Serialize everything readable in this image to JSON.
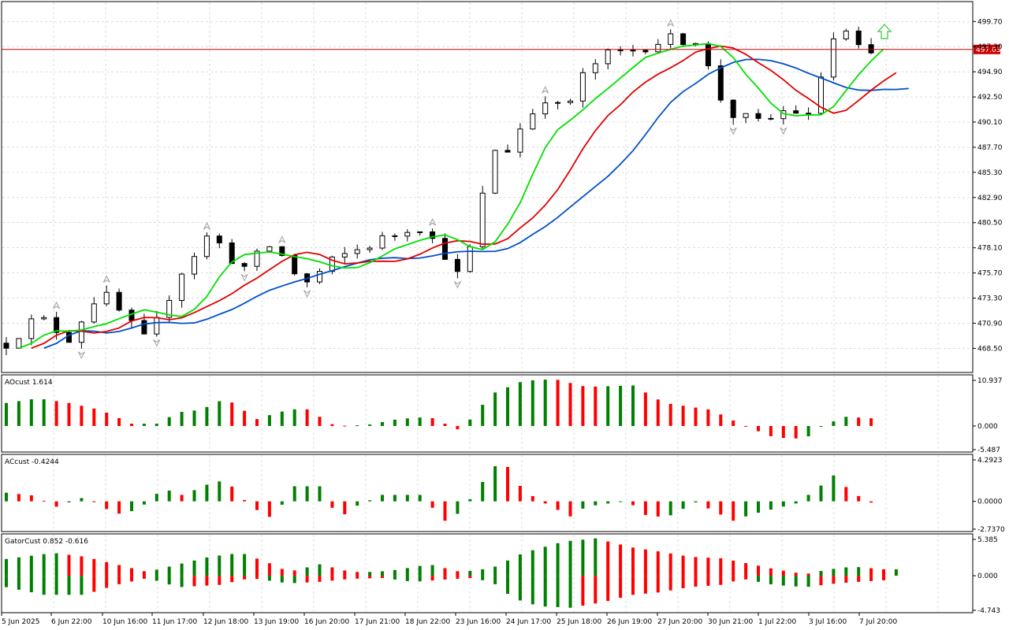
{
  "main": {
    "ylim": [
      466.2,
      501.6
    ],
    "y_ticks": [
      "499.70",
      "497.30",
      "494.90",
      "492.50",
      "490.10",
      "487.70",
      "485.30",
      "482.90",
      "480.50",
      "478.10",
      "475.70",
      "473.30",
      "470.90",
      "468.50"
    ],
    "current_price": "497.03",
    "current_price_value": 497.03,
    "colors": {
      "bull": "#ffffff",
      "bear": "#000000",
      "grid": "#c8c8c8",
      "price_line": "#cc0000",
      "lips": "#00e000",
      "teeth": "#e00000",
      "jaw": "#0050c8",
      "arrow": "#32c832",
      "fractal": "#a0a0a0"
    },
    "signal_icon": "up-arrow-icon"
  },
  "x_labels": [
    "5 Jun 2025",
    "6 Jun 22:00",
    "10 Jun 16:00",
    "11 Jun 17:00",
    "12 Jun 18:00",
    "13 Jun 19:00",
    "16 Jun 20:00",
    "17 Jun 21:00",
    "18 Jun 22:00",
    "23 Jun 16:00",
    "24 Jun 17:00",
    "25 Jun 18:00",
    "26 Jun 19:00",
    "27 Jun 20:00",
    "30 Jun 21:00",
    "1 Jul 22:00",
    "3 Jul 16:00",
    "7 Jul 20:00"
  ],
  "ao": {
    "title": "AOcust 1.614",
    "ticks": [
      "10.937",
      "0.000",
      "-5.487"
    ],
    "ylim": [
      -5.487,
      10.937
    ],
    "colors": {
      "up": "#008000",
      "down": "#ff0000"
    }
  },
  "ac": {
    "title": "ACcust -0.4244",
    "ticks": [
      "4.2923",
      "0.0000",
      "-2.7370"
    ],
    "ylim": [
      -2.737,
      4.2923
    ],
    "colors": {
      "up": "#008000",
      "down": "#ff0000"
    }
  },
  "gator": {
    "title": "GatorCust 0.852 -0.616",
    "ticks": [
      "5.385",
      "0.000",
      "-4.743"
    ],
    "ylim": [
      -4.743,
      5.385
    ],
    "colors": {
      "up": "#008000",
      "down": "#ff0000"
    }
  },
  "chart_data": {
    "type": "candlestick",
    "price_anchors": [
      [
        0,
        469
      ],
      [
        10,
        471.5
      ],
      [
        20,
        469.5
      ],
      [
        30,
        474
      ],
      [
        45,
        469
      ],
      [
        55,
        475.5
      ],
      [
        65,
        479.5
      ],
      [
        75,
        476
      ],
      [
        85,
        478.5
      ],
      [
        95,
        474.5
      ],
      [
        105,
        477
      ],
      [
        115,
        478.3
      ],
      [
        125,
        479.5
      ],
      [
        131,
        480.5
      ],
      [
        140,
        477.5
      ],
      [
        145,
        475
      ],
      [
        150,
        480
      ],
      [
        155,
        487.5
      ],
      [
        160,
        487.5
      ],
      [
        165,
        490
      ],
      [
        172,
        492.5
      ],
      [
        178,
        491
      ],
      [
        185,
        495
      ],
      [
        192,
        496.5
      ],
      [
        200,
        497
      ],
      [
        210,
        498
      ],
      [
        220,
        498
      ],
      [
        230,
        491
      ],
      [
        240,
        490
      ],
      [
        245,
        490.5
      ],
      [
        250,
        491.5
      ],
      [
        256,
        490.5
      ],
      [
        262,
        496.5
      ],
      [
        266,
        499.5
      ],
      [
        270,
        497.5
      ],
      [
        275,
        496.2
      ],
      [
        278,
        497
      ]
    ],
    "ao_anchors": [
      [
        0,
        5
      ],
      [
        10,
        6
      ],
      [
        20,
        5
      ],
      [
        30,
        3.5
      ],
      [
        40,
        0.5
      ],
      [
        48,
        0.5
      ],
      [
        55,
        3
      ],
      [
        62,
        3.5
      ],
      [
        70,
        6
      ],
      [
        80,
        1.5
      ],
      [
        87,
        3
      ],
      [
        95,
        4
      ],
      [
        105,
        0
      ],
      [
        115,
        0.2
      ],
      [
        125,
        1.5
      ],
      [
        135,
        2
      ],
      [
        145,
        -1
      ],
      [
        155,
        7
      ],
      [
        165,
        9.8
      ],
      [
        175,
        10.2
      ],
      [
        185,
        8.5
      ],
      [
        200,
        8.8
      ],
      [
        210,
        5
      ],
      [
        225,
        3.5
      ],
      [
        235,
        0.2
      ],
      [
        245,
        -2.5
      ],
      [
        255,
        -2.8
      ],
      [
        260,
        0
      ],
      [
        268,
        2
      ],
      [
        278,
        1.6
      ]
    ],
    "ac_anchors": [
      [
        0,
        0.8
      ],
      [
        10,
        0.5
      ],
      [
        15,
        -0.6
      ],
      [
        25,
        0.4
      ],
      [
        35,
        -1.2
      ],
      [
        42,
        -0.8
      ],
      [
        50,
        1.2
      ],
      [
        57,
        0.5
      ],
      [
        62,
        1.4
      ],
      [
        70,
        2
      ],
      [
        78,
        -0.5
      ],
      [
        85,
        -1.6
      ],
      [
        92,
        1.4
      ],
      [
        100,
        1.4
      ],
      [
        106,
        -1.6
      ],
      [
        112,
        -0.4
      ],
      [
        120,
        0.6
      ],
      [
        132,
        0.6
      ],
      [
        140,
        -1.8
      ],
      [
        145,
        -1
      ],
      [
        150,
        1
      ],
      [
        155,
        3
      ],
      [
        158,
        3.8
      ],
      [
        160,
        3.2
      ],
      [
        165,
        1
      ],
      [
        172,
        -0.2
      ],
      [
        180,
        -1.4
      ],
      [
        185,
        -0.5
      ],
      [
        192,
        -0.2
      ],
      [
        198,
        0.1
      ],
      [
        205,
        -1.5
      ],
      [
        212,
        -1.3
      ],
      [
        220,
        -0.1
      ],
      [
        225,
        -0.8
      ],
      [
        232,
        -1.8
      ],
      [
        238,
        -1.2
      ],
      [
        245,
        -0.7
      ],
      [
        252,
        -0.2
      ],
      [
        258,
        1
      ],
      [
        264,
        2.4
      ],
      [
        270,
        0.8
      ],
      [
        278,
        -0.42
      ]
    ],
    "gator_upper": [
      [
        0,
        2.2
      ],
      [
        15,
        3
      ],
      [
        25,
        2.5
      ],
      [
        35,
        1.5
      ],
      [
        45,
        0.5
      ],
      [
        55,
        1.5
      ],
      [
        65,
        2.5
      ],
      [
        75,
        3
      ],
      [
        85,
        1.5
      ],
      [
        90,
        0.5
      ],
      [
        100,
        1.5
      ],
      [
        110,
        0.5
      ],
      [
        118,
        0.5
      ],
      [
        125,
        0.8
      ],
      [
        135,
        1.5
      ],
      [
        145,
        0.5
      ],
      [
        155,
        1
      ],
      [
        165,
        3
      ],
      [
        178,
        4.5
      ],
      [
        188,
        4.9
      ],
      [
        200,
        3.7
      ],
      [
        208,
        3.2
      ],
      [
        218,
        2.5
      ],
      [
        228,
        2.3
      ],
      [
        238,
        1.5
      ],
      [
        246,
        0.8
      ],
      [
        255,
        0.2
      ],
      [
        262,
        0.8
      ],
      [
        270,
        1.2
      ],
      [
        280,
        0.85
      ]
    ],
    "gator_lower": [
      [
        0,
        -1.5
      ],
      [
        12,
        -2.5
      ],
      [
        25,
        -2.5
      ],
      [
        35,
        -1.2
      ],
      [
        45,
        -0.3
      ],
      [
        55,
        -1.5
      ],
      [
        68,
        -1.2
      ],
      [
        78,
        -0.3
      ],
      [
        90,
        -1
      ],
      [
        100,
        -0.8
      ],
      [
        110,
        -0.4
      ],
      [
        120,
        -0.3
      ],
      [
        130,
        -0.8
      ],
      [
        140,
        -0.5
      ],
      [
        148,
        -0.3
      ],
      [
        155,
        -0.8
      ],
      [
        162,
        -3
      ],
      [
        170,
        -4
      ],
      [
        180,
        -4.2
      ],
      [
        190,
        -3.5
      ],
      [
        200,
        -2.5
      ],
      [
        208,
        -2.2
      ],
      [
        218,
        -1.5
      ],
      [
        228,
        -1.2
      ],
      [
        235,
        -0.4
      ],
      [
        245,
        -1.2
      ],
      [
        255,
        -1.5
      ],
      [
        265,
        -1
      ],
      [
        272,
        -0.8
      ],
      [
        280,
        -0.6
      ]
    ]
  }
}
